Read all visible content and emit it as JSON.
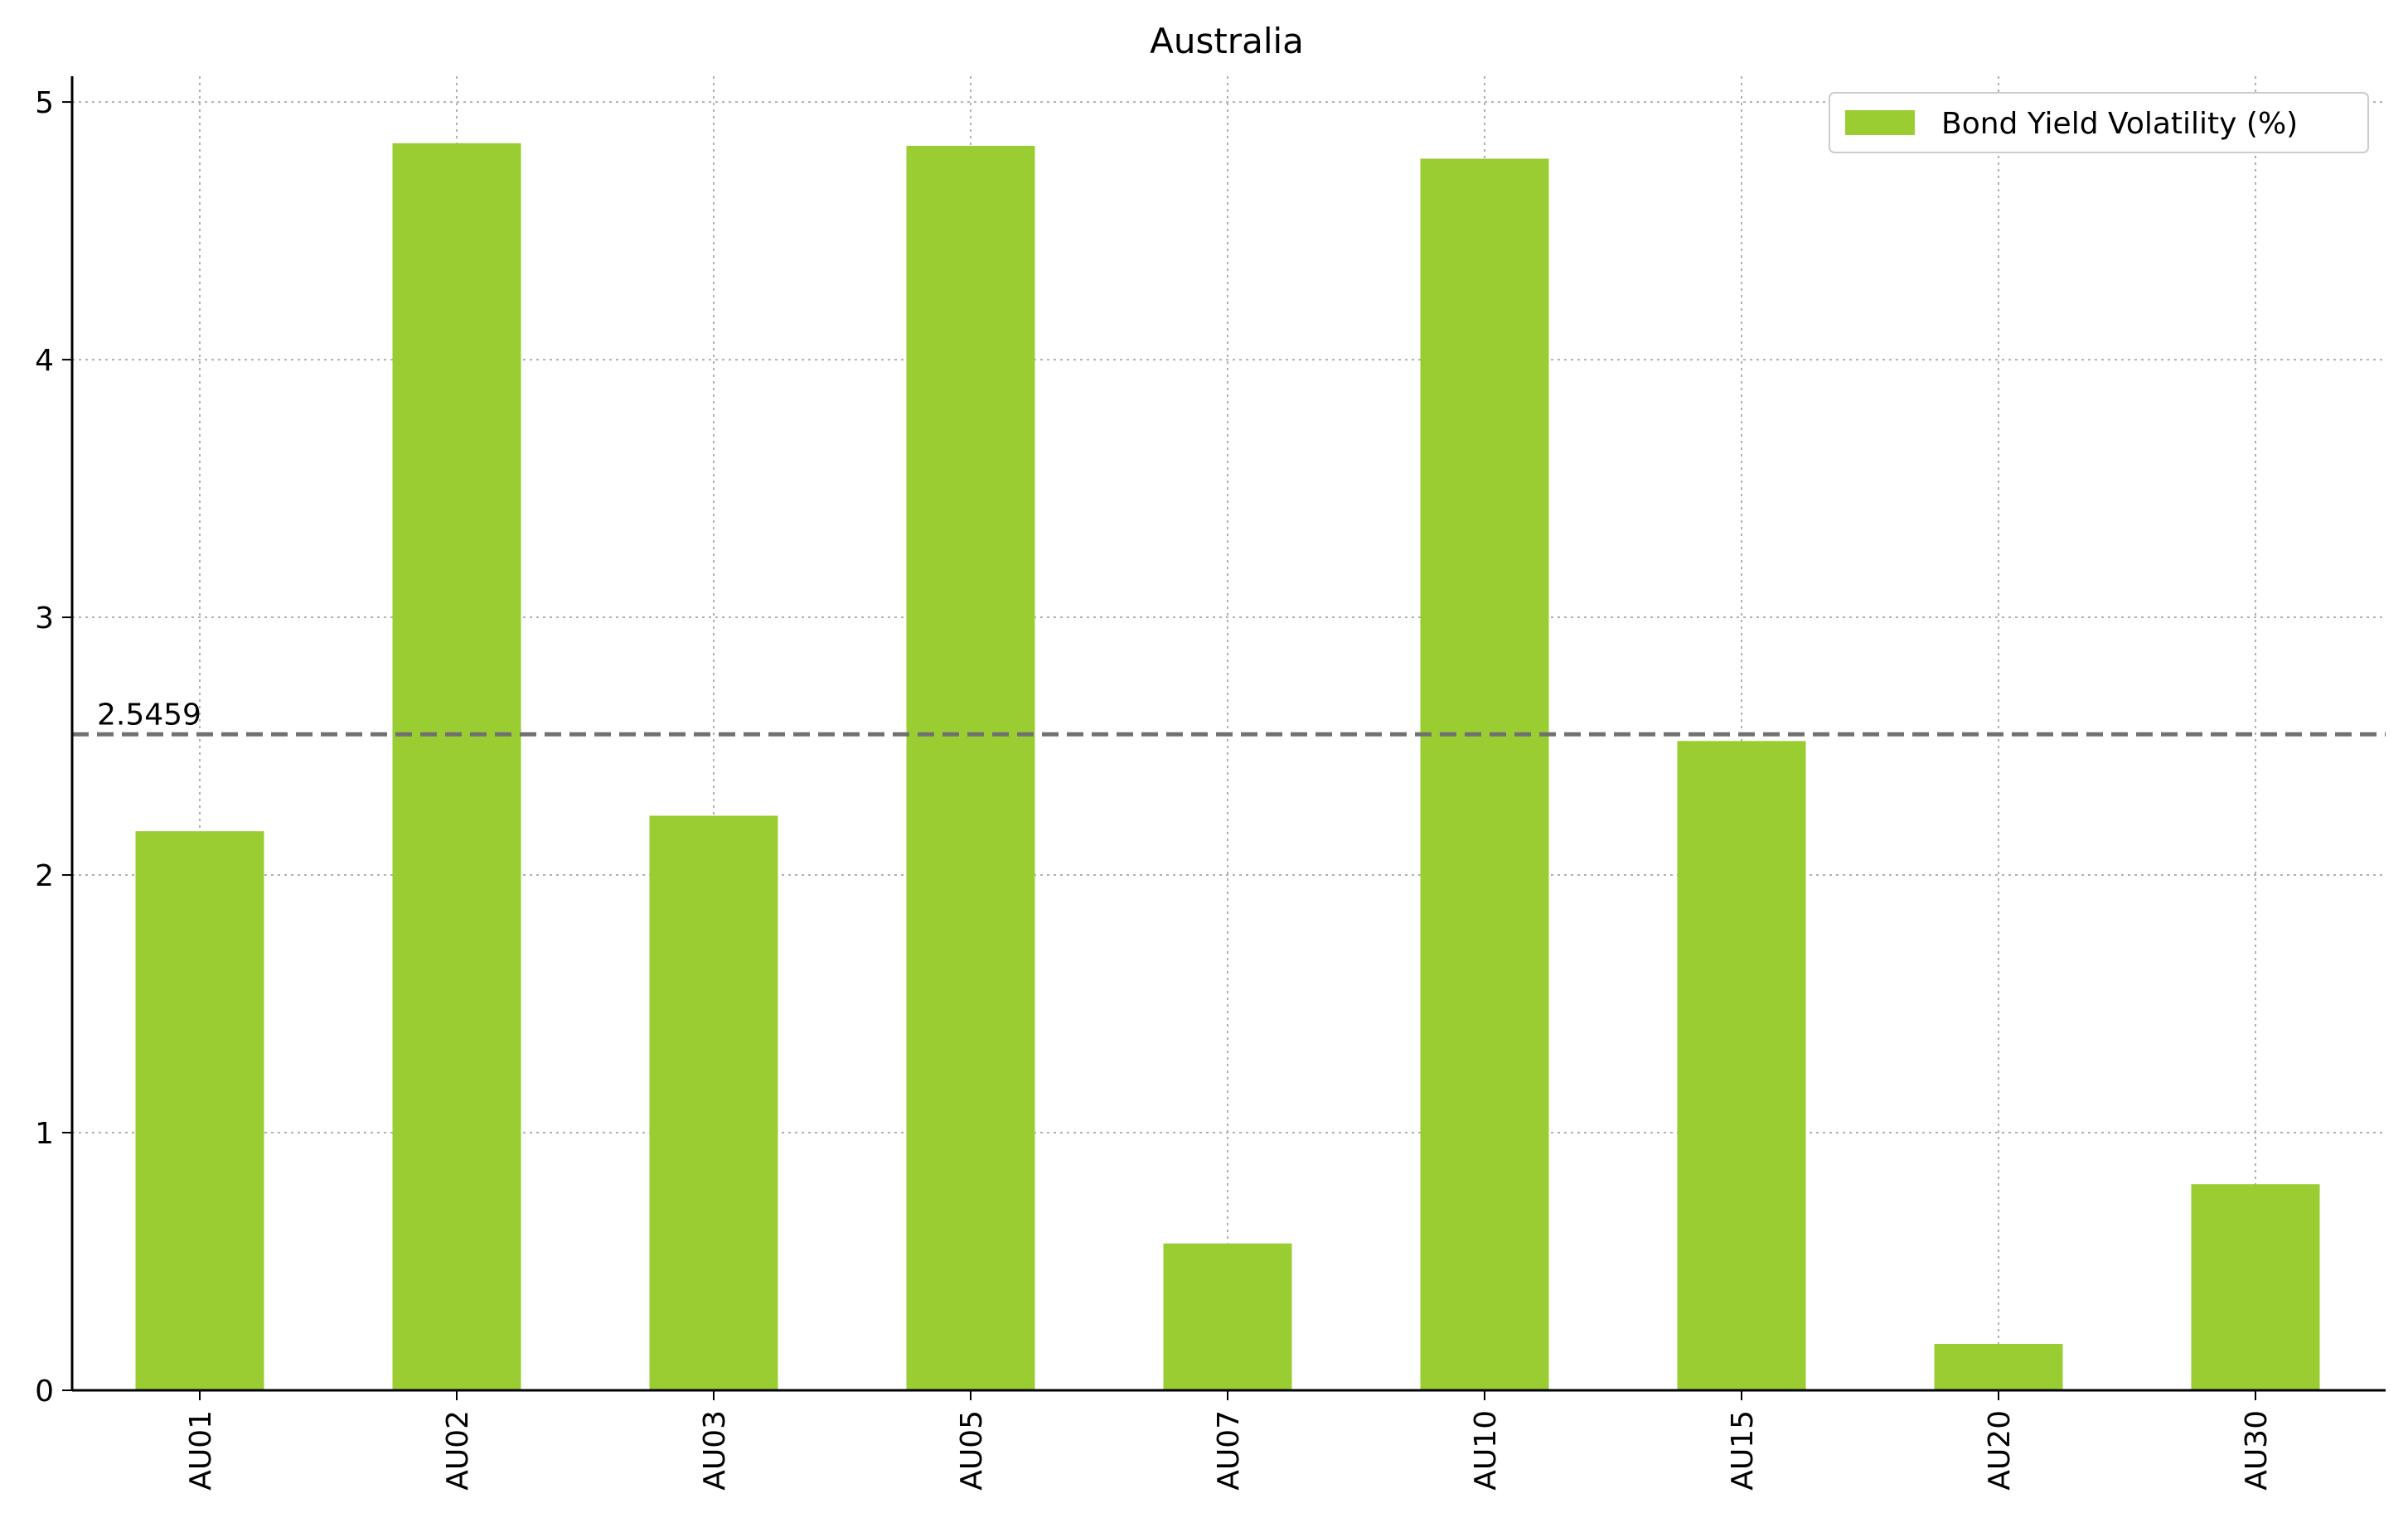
{
  "chart_data": {
    "type": "bar",
    "title": "Australia",
    "xlabel": "",
    "ylabel": "",
    "categories": [
      "AU01",
      "AU02",
      "AU03",
      "AU05",
      "AU07",
      "AU10",
      "AU15",
      "AU20",
      "AU30"
    ],
    "series": [
      {
        "name": "Bond Yield Volatility (%)",
        "color": "#9acd32",
        "values": [
          2.17,
          4.84,
          2.23,
          4.83,
          0.57,
          4.78,
          2.52,
          0.18,
          0.8
        ]
      }
    ],
    "ylim": [
      0,
      5.1
    ],
    "yticks": [
      0,
      1,
      2,
      3,
      4,
      5
    ],
    "reference_line": {
      "value": 2.5459,
      "label": "2.5459",
      "style": "dashed",
      "color": "#707070"
    },
    "grid": true,
    "legend": "top-right"
  }
}
